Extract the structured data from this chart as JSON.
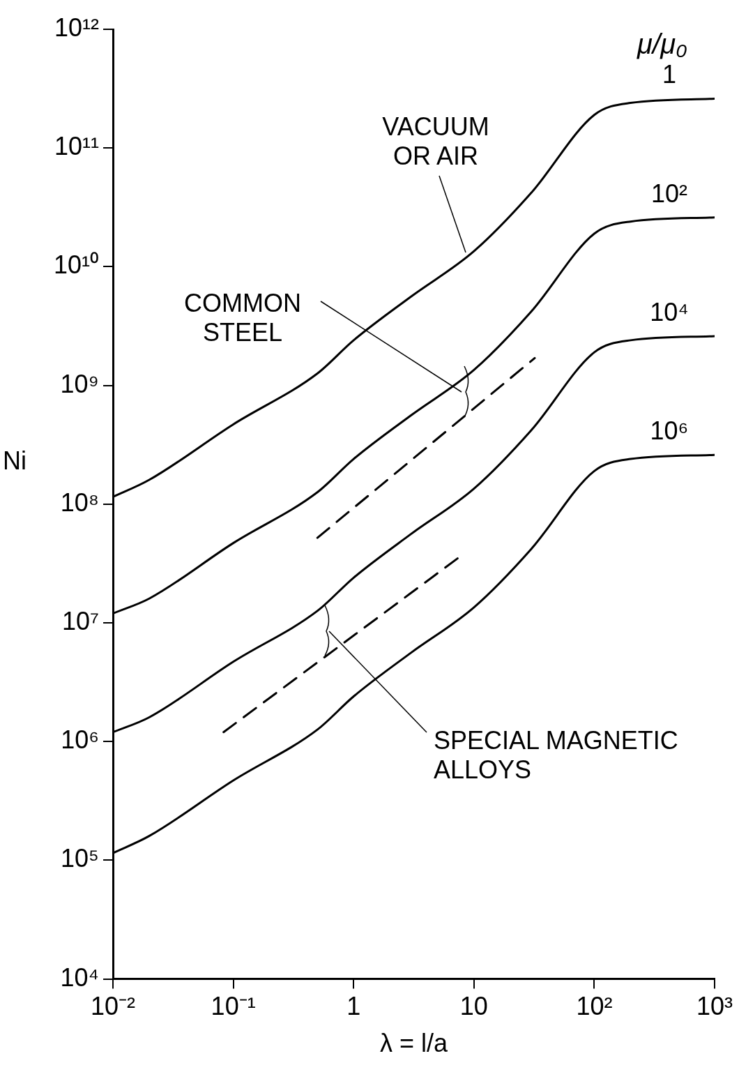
{
  "chart_data": {
    "type": "line",
    "xlabel": "λ = l/a",
    "ylabel": "Ni",
    "legend_title": "μ/μ₀",
    "log": "xy",
    "grid": false,
    "legend": false,
    "marker": "none",
    "xlim": [
      0.01,
      1000
    ],
    "xticks": [
      {
        "value": 0.01,
        "label": "10⁻²"
      },
      {
        "value": 0.1,
        "label": "10⁻¹"
      },
      1,
      10,
      {
        "value": 100,
        "label": "10²"
      },
      {
        "value": 1000,
        "label": "10³"
      }
    ],
    "ylim": [
      10000,
      1000000000000
    ],
    "yticks": [
      {
        "value": 10000,
        "label": "10⁴"
      },
      {
        "value": 100000,
        "label": "10⁵"
      },
      {
        "value": 1000000,
        "label": "10⁶"
      },
      {
        "value": 10000000,
        "label": "10⁷"
      },
      {
        "value": 100000000,
        "label": "10⁸"
      },
      {
        "value": 1000000000,
        "label": "10⁹"
      },
      {
        "value": 10000000000,
        "label": "10¹⁰"
      },
      {
        "value": 100000000000,
        "label": "10¹¹"
      },
      {
        "value": 1000000000000,
        "label": "10¹²"
      }
    ],
    "x": [
      0.01,
      0.02,
      0.1,
      0.5,
      1,
      3,
      10,
      30,
      100,
      200,
      1000
    ],
    "series": [
      {
        "name": "1",
        "color": "#000000",
        "values": [
          115000000.0,
          160000000.0,
          470000000.0,
          1260000000.0,
          2400000000.0,
          5600000000.0,
          13500000000.0,
          42000000000.0,
          190000000000.0,
          240000000000.0,
          260000000000.0
        ]
      },
      {
        "name": "10²",
        "color": "#000000",
        "values": [
          12000000.0,
          16000000.0,
          47000000.0,
          126000000.0,
          240000000.0,
          560000000.0,
          1350000000.0,
          4200000000.0,
          19000000000.0,
          24000000000.0,
          26000000000.0
        ]
      },
      {
        "name": "10⁴",
        "color": "#000000",
        "values": [
          1200000.0,
          1600000.0,
          4700000.0,
          12600000.0,
          24000000.0,
          56000000.0,
          135000000.0,
          420000000.0,
          1900000000.0,
          2400000000.0,
          2600000000.0
        ]
      },
      {
        "name": "10⁶",
        "color": "#000000",
        "values": [
          115000.0,
          160000.0,
          470000.0,
          1260000.0,
          2400000.0,
          5600000.0,
          13500000.0,
          42000000.0,
          190000000.0,
          240000000.0,
          260000000.0
        ]
      },
      {
        "color": "#000000",
        "line_style": "dashed",
        "x": [
          0.5,
          32
        ],
        "values": [
          52000000.0,
          1700000000.0
        ]
      },
      {
        "color": "#000000",
        "line_style": "dashed",
        "x": [
          0.083,
          7.9
        ],
        "values": [
          1200000.0,
          37000000.0
        ]
      }
    ],
    "annotations": [
      "VACUUM\nOR AIR",
      "COMMON\nSTEEL",
      "SPECIAL MAGNETIC\nALLOYS"
    ]
  }
}
